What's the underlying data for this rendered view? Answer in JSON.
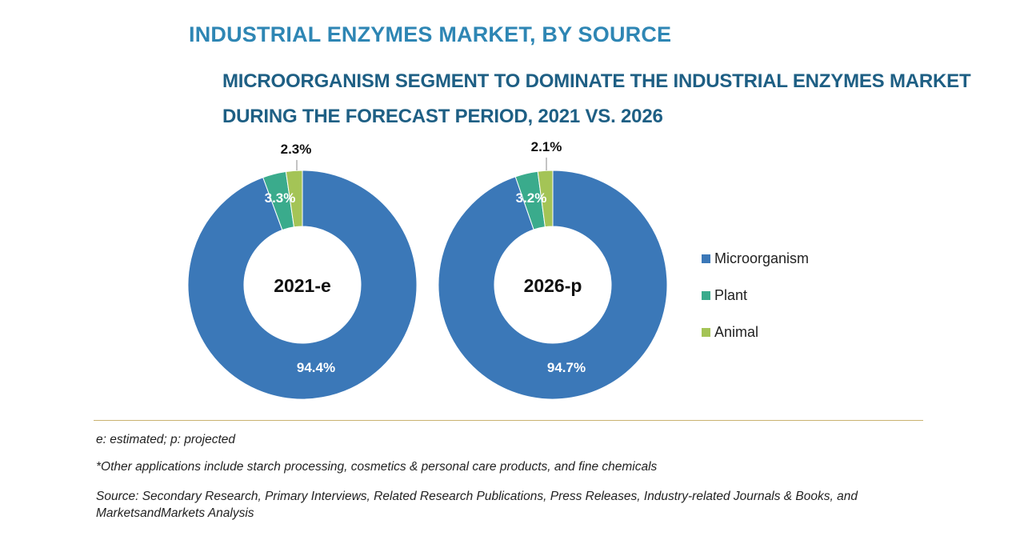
{
  "header": {
    "title": "INDUSTRIAL ENZYMES MARKET, BY SOURCE",
    "subtitle_line1": "MICROORGANISM SEGMENT TO DOMINATE THE INDUSTRIAL ENZYMES MARKET",
    "subtitle_line2": "DURING THE FORECAST PERIOD, 2021 VS. 2026"
  },
  "chart_data": [
    {
      "type": "pie",
      "variant": "donut",
      "center_label": "2021-e",
      "categories": [
        "Microorganism",
        "Plant",
        "Animal"
      ],
      "values": [
        94.4,
        3.3,
        2.3
      ],
      "value_labels": [
        "94.4%",
        "3.3%",
        "2.3%"
      ],
      "colors": [
        "#3b78b8",
        "#3aab8c",
        "#a4c456"
      ]
    },
    {
      "type": "pie",
      "variant": "donut",
      "center_label": "2026-p",
      "categories": [
        "Microorganism",
        "Plant",
        "Animal"
      ],
      "values": [
        94.7,
        3.2,
        2.1
      ],
      "value_labels": [
        "94.7%",
        "3.2%",
        "2.1%"
      ],
      "colors": [
        "#3b78b8",
        "#3aab8c",
        "#a4c456"
      ]
    }
  ],
  "legend": {
    "items": [
      {
        "label": "Microorganism",
        "color": "#3b78b8"
      },
      {
        "label": "Plant",
        "color": "#3aab8c"
      },
      {
        "label": "Animal",
        "color": "#a4c456"
      }
    ]
  },
  "footnotes": {
    "abbrev": "e: estimated; p: projected",
    "other": "*Other applications include starch processing, cosmetics & personal care products, and fine chemicals",
    "source": "Source: Secondary Research, Primary Interviews, Related Research Publications, Press Releases, Industry-related Journals & Books, and MarketsandMarkets Analysis"
  }
}
